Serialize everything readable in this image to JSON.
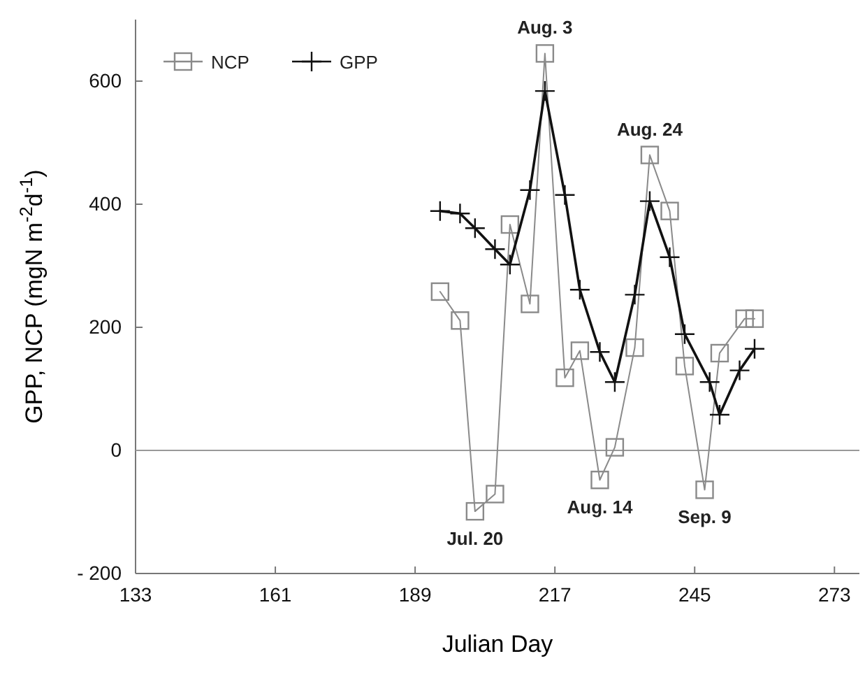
{
  "chart_data": {
    "type": "line",
    "xlabel": "Julian Day",
    "ylabel": "GPP, NCP  (mgN m$^{-2}$d$^{-1}$)",
    "xlim": [
      133,
      278
    ],
    "xticks": [
      133,
      161,
      189,
      217,
      245,
      273
    ],
    "ylim": [
      -200,
      700
    ],
    "yticks": [
      -200,
      0,
      200,
      400,
      600
    ],
    "grid": false,
    "legend": "top left",
    "line_style": "solid",
    "ref_lines": [
      {
        "axis": "y",
        "value": 0,
        "color": "#999999"
      }
    ],
    "series": [
      {
        "name": "NCP",
        "color": "#8a8a8a",
        "marker": "square",
        "x": [
          194,
          198,
          201,
          205,
          208,
          212,
          215,
          219,
          222,
          226,
          229,
          233,
          236,
          240,
          243,
          247,
          250,
          255,
          257
        ],
        "values": [
          258,
          211,
          -99,
          -71,
          367,
          238,
          645,
          118,
          162,
          -48,
          5,
          167,
          480,
          389,
          137,
          -64,
          158,
          214,
          214
        ]
      },
      {
        "name": "GPP",
        "color": "#111111",
        "marker": "cross",
        "x": [
          194,
          198,
          201,
          205,
          208,
          212,
          215,
          219,
          222,
          226,
          229,
          233,
          236,
          240,
          243,
          248,
          250,
          254,
          257
        ],
        "values": [
          389,
          385,
          361,
          327,
          302,
          423,
          584,
          415,
          261,
          160,
          111,
          253,
          405,
          314,
          189,
          111,
          58,
          130,
          165
        ]
      }
    ],
    "annotations": [
      {
        "text": "Aug. 3",
        "x": 215,
        "y": 645
      },
      {
        "text": "Jul. 20",
        "x": 201,
        "y": -99
      },
      {
        "text": "Aug. 14",
        "x": 226,
        "y": -48
      },
      {
        "text": "Aug. 24",
        "x": 236,
        "y": 480
      },
      {
        "text": "Sep. 9",
        "x": 247,
        "y": -64
      }
    ]
  }
}
